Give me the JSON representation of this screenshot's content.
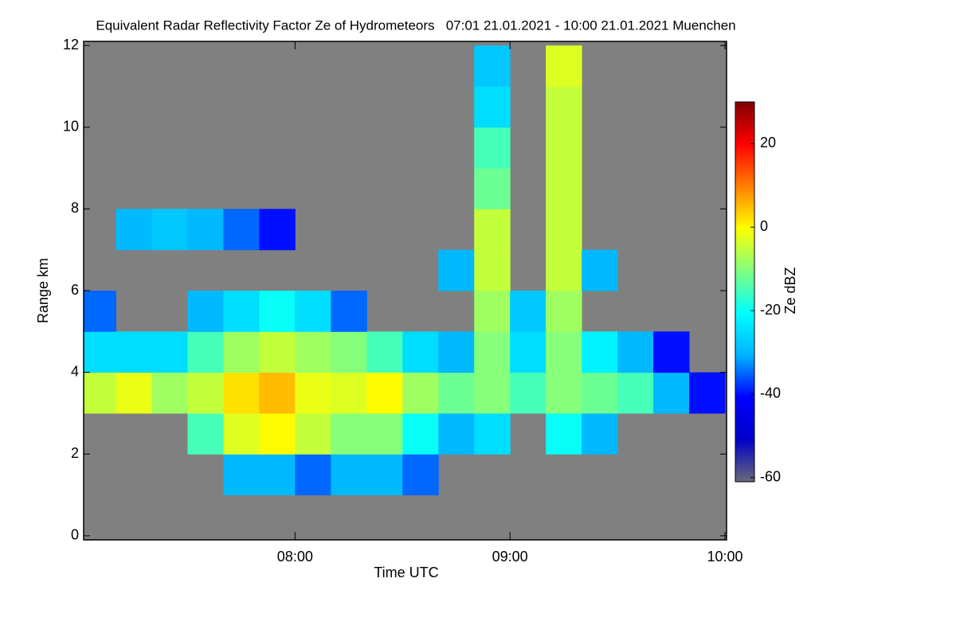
{
  "chart_data": {
    "type": "heatmap",
    "title": "Equivalent Radar Reflectivity Factor Ze of Hydrometeors   07:01 21.01.2021 - 10:00 21.01.2021 Muenchen",
    "x_label": "Time UTC",
    "y_label": "Range km",
    "colorbar_label": "Ze dBZ",
    "x": [
      "07:05",
      "07:15",
      "07:25",
      "07:35",
      "07:45",
      "07:55",
      "08:05",
      "08:15",
      "08:25",
      "08:35",
      "08:45",
      "08:55",
      "09:05",
      "09:15",
      "09:25",
      "09:35",
      "09:45",
      "09:55"
    ],
    "y": [
      0.5,
      1.5,
      2.5,
      3.5,
      4.5,
      5.5,
      6.5,
      7.5,
      8.5,
      9.5,
      10.5,
      11.5
    ],
    "z": [
      [
        null,
        null,
        null,
        null,
        null,
        null,
        null,
        null,
        null,
        null,
        null,
        null,
        null,
        null,
        null,
        null,
        null,
        null
      ],
      [
        null,
        null,
        null,
        null,
        -30,
        -30,
        -35,
        -30,
        -30,
        -35,
        null,
        null,
        null,
        null,
        null,
        null,
        null,
        null
      ],
      [
        null,
        null,
        null,
        -15,
        -3,
        0,
        -5,
        -10,
        -10,
        -20,
        -30,
        -25,
        null,
        -20,
        -30,
        null,
        null,
        null
      ],
      [
        -5,
        -2,
        -8,
        -5,
        2,
        5,
        -2,
        -3,
        0,
        -8,
        -12,
        -10,
        -15,
        -10,
        -12,
        -15,
        -30,
        -40
      ],
      [
        -25,
        -25,
        -25,
        -15,
        -8,
        -5,
        -8,
        -10,
        -15,
        -25,
        -30,
        -10,
        -25,
        -10,
        -22,
        -30,
        -40,
        null
      ],
      [
        -35,
        null,
        null,
        -30,
        -25,
        -20,
        -25,
        -35,
        null,
        null,
        null,
        -8,
        -28,
        -8,
        null,
        null,
        null,
        null
      ],
      [
        null,
        null,
        null,
        null,
        null,
        null,
        null,
        null,
        null,
        null,
        -30,
        -5,
        null,
        -5,
        -30,
        null,
        null,
        null
      ],
      [
        null,
        -30,
        -28,
        -30,
        -35,
        -40,
        null,
        null,
        null,
        null,
        null,
        -5,
        null,
        -5,
        null,
        null,
        null,
        null
      ],
      [
        null,
        null,
        null,
        null,
        null,
        null,
        null,
        null,
        null,
        null,
        null,
        -12,
        null,
        -5,
        null,
        null,
        null,
        null
      ],
      [
        null,
        null,
        null,
        null,
        null,
        null,
        null,
        null,
        null,
        null,
        null,
        -15,
        null,
        -5,
        null,
        null,
        null,
        null
      ],
      [
        null,
        null,
        null,
        null,
        null,
        null,
        null,
        null,
        null,
        null,
        null,
        -25,
        null,
        -5,
        null,
        null,
        null,
        null
      ],
      [
        null,
        null,
        null,
        null,
        null,
        null,
        null,
        null,
        null,
        null,
        null,
        -28,
        null,
        -3,
        null,
        null,
        null,
        null
      ]
    ],
    "xlim": [
      "07:01",
      "10:00"
    ],
    "xticks": [
      "08:00",
      "09:00",
      "10:00"
    ],
    "ylim": [
      -0.1,
      12.1
    ],
    "yticks": [
      0,
      2,
      4,
      6,
      8,
      10,
      12
    ],
    "zlim": [
      -61,
      30
    ],
    "zticks": [
      -60,
      -40,
      -20,
      0,
      20
    ],
    "background": "#808080",
    "colormap": [
      "#6a6a7a",
      "#0000c8",
      "#0000ff",
      "#00b4ff",
      "#00ffff",
      "#80ff80",
      "#ffff00",
      "#ff8000",
      "#ff0000",
      "#800000"
    ]
  }
}
